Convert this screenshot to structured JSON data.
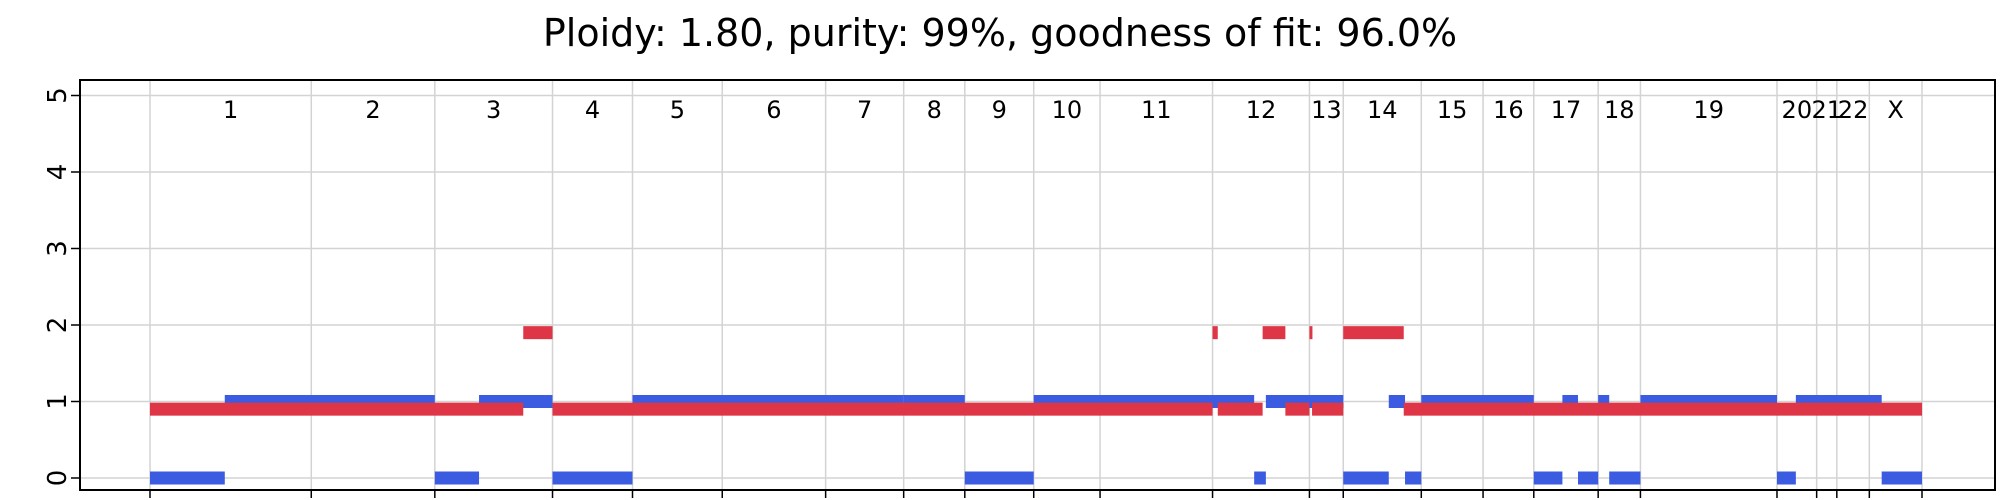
{
  "chart_data": {
    "type": "segments",
    "title": "Ploidy: 1.80, purity: 99%, goodness of fit: 96.0%",
    "xlabel": "",
    "ylabel": "",
    "ylim": [
      0,
      5
    ],
    "yticks": [
      "0",
      "1",
      "2",
      "3",
      "4",
      "5"
    ],
    "grid": true,
    "colors": {
      "major": "#3b5be0",
      "minor": "#de3646",
      "grid": "#d3d3d3"
    },
    "chromosomes": [
      {
        "name": "1",
        "start": 0,
        "end": 248
      },
      {
        "name": "2",
        "start": 248,
        "end": 438
      },
      {
        "name": "3",
        "start": 438,
        "end": 619
      },
      {
        "name": "4",
        "start": 619,
        "end": 742
      },
      {
        "name": "5",
        "start": 742,
        "end": 880
      },
      {
        "name": "6",
        "start": 880,
        "end": 1039
      },
      {
        "name": "7",
        "start": 1039,
        "end": 1159
      },
      {
        "name": "8",
        "start": 1159,
        "end": 1253
      },
      {
        "name": "9",
        "start": 1253,
        "end": 1359
      },
      {
        "name": "10",
        "start": 1359,
        "end": 1461
      },
      {
        "name": "11",
        "start": 1461,
        "end": 1634
      },
      {
        "name": "12",
        "start": 1634,
        "end": 1783
      },
      {
        "name": "13",
        "start": 1783,
        "end": 1835
      },
      {
        "name": "14",
        "start": 1835,
        "end": 1955
      },
      {
        "name": "15",
        "start": 1955,
        "end": 2050
      },
      {
        "name": "16",
        "start": 2050,
        "end": 2128
      },
      {
        "name": "17",
        "start": 2128,
        "end": 2227
      },
      {
        "name": "18",
        "start": 2227,
        "end": 2292
      },
      {
        "name": "19",
        "start": 2292,
        "end": 2502
      },
      {
        "name": "20",
        "start": 2502,
        "end": 2563
      },
      {
        "name": "21",
        "start": 2563,
        "end": 2594
      },
      {
        "name": "22",
        "start": 2594,
        "end": 2644
      },
      {
        "name": "X",
        "start": 2644,
        "end": 2725
      }
    ],
    "series": [
      {
        "segments": [
          {
            "start": 0,
            "end": 115,
            "cn": 0
          },
          {
            "start": 115,
            "end": 438,
            "cn": 1
          },
          {
            "start": 438,
            "end": 506,
            "cn": 0
          },
          {
            "start": 506,
            "end": 619,
            "cn": 1
          },
          {
            "start": 619,
            "end": 742,
            "cn": 0
          },
          {
            "start": 742,
            "end": 1159,
            "cn": 1
          },
          {
            "start": 1159,
            "end": 1253,
            "cn": 1
          },
          {
            "start": 1253,
            "end": 1359,
            "cn": 0
          },
          {
            "start": 1359,
            "end": 1698,
            "cn": 1
          },
          {
            "start": 1698,
            "end": 1716,
            "cn": 0
          },
          {
            "start": 1716,
            "end": 1835,
            "cn": 1
          },
          {
            "start": 1835,
            "end": 1905,
            "cn": 0
          },
          {
            "start": 1905,
            "end": 1930,
            "cn": 1
          },
          {
            "start": 1930,
            "end": 1955,
            "cn": 0
          },
          {
            "start": 1955,
            "end": 2128,
            "cn": 1
          },
          {
            "start": 2128,
            "end": 2172,
            "cn": 0
          },
          {
            "start": 2172,
            "end": 2196,
            "cn": 1
          },
          {
            "start": 2196,
            "end": 2227,
            "cn": 0
          },
          {
            "start": 2227,
            "end": 2244,
            "cn": 1
          },
          {
            "start": 2244,
            "end": 2292,
            "cn": 0
          },
          {
            "start": 2292,
            "end": 2502,
            "cn": 1
          },
          {
            "start": 2502,
            "end": 2531,
            "cn": 0
          },
          {
            "start": 2531,
            "end": 2663,
            "cn": 1
          },
          {
            "start": 2663,
            "end": 2725,
            "cn": 0
          }
        ]
      },
      {
        "segments": [
          {
            "start": 0,
            "end": 574,
            "cn": 0.9
          },
          {
            "start": 574,
            "end": 619,
            "cn": 1.9
          },
          {
            "start": 619,
            "end": 1634,
            "cn": 0.9
          },
          {
            "start": 1634,
            "end": 1642,
            "cn": 1.9
          },
          {
            "start": 1642,
            "end": 1711,
            "cn": 0.9
          },
          {
            "start": 1711,
            "end": 1746,
            "cn": 1.9
          },
          {
            "start": 1746,
            "end": 1783,
            "cn": 0.9
          },
          {
            "start": 1783,
            "end": 1787,
            "cn": 1.9
          },
          {
            "start": 1787,
            "end": 1835,
            "cn": 0.9
          },
          {
            "start": 1835,
            "end": 1928,
            "cn": 1.9
          },
          {
            "start": 1928,
            "end": 2725,
            "cn": 0.9
          }
        ]
      }
    ]
  }
}
